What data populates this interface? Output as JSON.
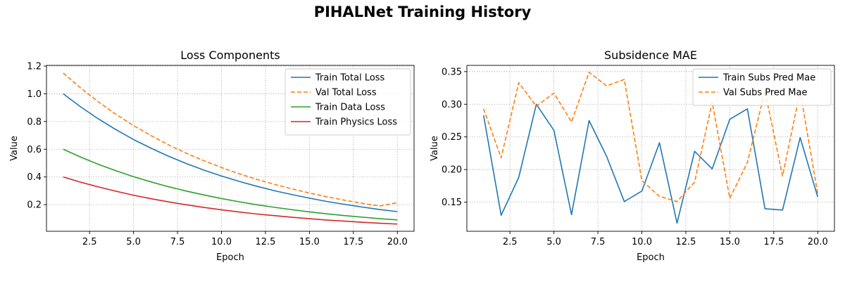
{
  "figure": {
    "title": "PIHALNet Training History"
  },
  "chart_data": [
    {
      "type": "line",
      "title": "Loss Components",
      "xlabel": "Epoch",
      "ylabel": "Value",
      "xlim": [
        0.05,
        20.95
      ],
      "ylim": [
        0.008,
        1.205
      ],
      "xticks": [
        2.5,
        5.0,
        7.5,
        10.0,
        12.5,
        15.0,
        17.5,
        20.0
      ],
      "xtick_labels": [
        "2.5",
        "5.0",
        "7.5",
        "10.0",
        "12.5",
        "15.0",
        "17.5",
        "20.0"
      ],
      "yticks": [
        0.2,
        0.4,
        0.6,
        0.8,
        1.0,
        1.2
      ],
      "ytick_labels": [
        "0.2",
        "0.4",
        "0.6",
        "0.8",
        "1.0",
        "1.2"
      ],
      "grid": true,
      "legend_position": "top-right",
      "x": [
        1,
        2,
        3,
        4,
        5,
        6,
        7,
        8,
        9,
        10,
        11,
        12,
        13,
        14,
        15,
        16,
        17,
        18,
        19,
        20
      ],
      "series": [
        {
          "name": "Train Total Loss",
          "color": "#1f77b4",
          "dash": "solid",
          "values": [
            1.0,
            0.905,
            0.819,
            0.741,
            0.67,
            0.607,
            0.549,
            0.497,
            0.449,
            0.407,
            0.368,
            0.333,
            0.301,
            0.273,
            0.247,
            0.223,
            0.202,
            0.183,
            0.165,
            0.15
          ]
        },
        {
          "name": "Val Total Loss",
          "color": "#ff7f0e",
          "dash": "dashed",
          "values": [
            1.15,
            1.041,
            0.942,
            0.852,
            0.771,
            0.698,
            0.631,
            0.571,
            0.517,
            0.468,
            0.423,
            0.383,
            0.347,
            0.314,
            0.284,
            0.257,
            0.232,
            0.21,
            0.19,
            0.215
          ]
        },
        {
          "name": "Train Data Loss",
          "color": "#2ca02c",
          "dash": "solid",
          "values": [
            0.6,
            0.543,
            0.491,
            0.445,
            0.402,
            0.364,
            0.329,
            0.298,
            0.27,
            0.244,
            0.221,
            0.2,
            0.181,
            0.164,
            0.148,
            0.134,
            0.121,
            0.11,
            0.099,
            0.09
          ]
        },
        {
          "name": "Train Physics Loss",
          "color": "#d62728",
          "dash": "solid",
          "values": [
            0.4,
            0.362,
            0.328,
            0.297,
            0.268,
            0.243,
            0.22,
            0.199,
            0.18,
            0.163,
            0.147,
            0.133,
            0.121,
            0.109,
            0.099,
            0.089,
            0.081,
            0.073,
            0.066,
            0.06
          ]
        }
      ]
    },
    {
      "type": "line",
      "title": "Subsidence MAE",
      "xlabel": "Epoch",
      "ylabel": "Value",
      "xlim": [
        0.05,
        20.95
      ],
      "ylim": [
        0.1055,
        0.3595
      ],
      "xticks": [
        2.5,
        5.0,
        7.5,
        10.0,
        12.5,
        15.0,
        17.5,
        20.0
      ],
      "xtick_labels": [
        "2.5",
        "5.0",
        "7.5",
        "10.0",
        "12.5",
        "15.0",
        "17.5",
        "20.0"
      ],
      "yticks": [
        0.15,
        0.2,
        0.25,
        0.3,
        0.35
      ],
      "ytick_labels": [
        "0.15",
        "0.20",
        "0.25",
        "0.30",
        "0.35"
      ],
      "grid": true,
      "legend_position": "top-right",
      "x": [
        1,
        2,
        3,
        4,
        5,
        6,
        7,
        8,
        9,
        10,
        11,
        12,
        13,
        14,
        15,
        16,
        17,
        18,
        19,
        20
      ],
      "series": [
        {
          "name": "Train Subs Pred Mae",
          "color": "#1f77b4",
          "dash": "solid",
          "values": [
            0.283,
            0.13,
            0.188,
            0.3,
            0.26,
            0.131,
            0.275,
            0.22,
            0.151,
            0.167,
            0.241,
            0.118,
            0.228,
            0.201,
            0.277,
            0.293,
            0.14,
            0.138,
            0.249,
            0.158
          ]
        },
        {
          "name": "Val Subs Pred Mae",
          "color": "#ff7f0e",
          "dash": "dashed",
          "values": [
            0.293,
            0.218,
            0.333,
            0.297,
            0.317,
            0.273,
            0.349,
            0.328,
            0.338,
            0.183,
            0.159,
            0.151,
            0.181,
            0.303,
            0.156,
            0.211,
            0.32,
            0.19,
            0.32,
            0.163
          ]
        }
      ]
    }
  ]
}
